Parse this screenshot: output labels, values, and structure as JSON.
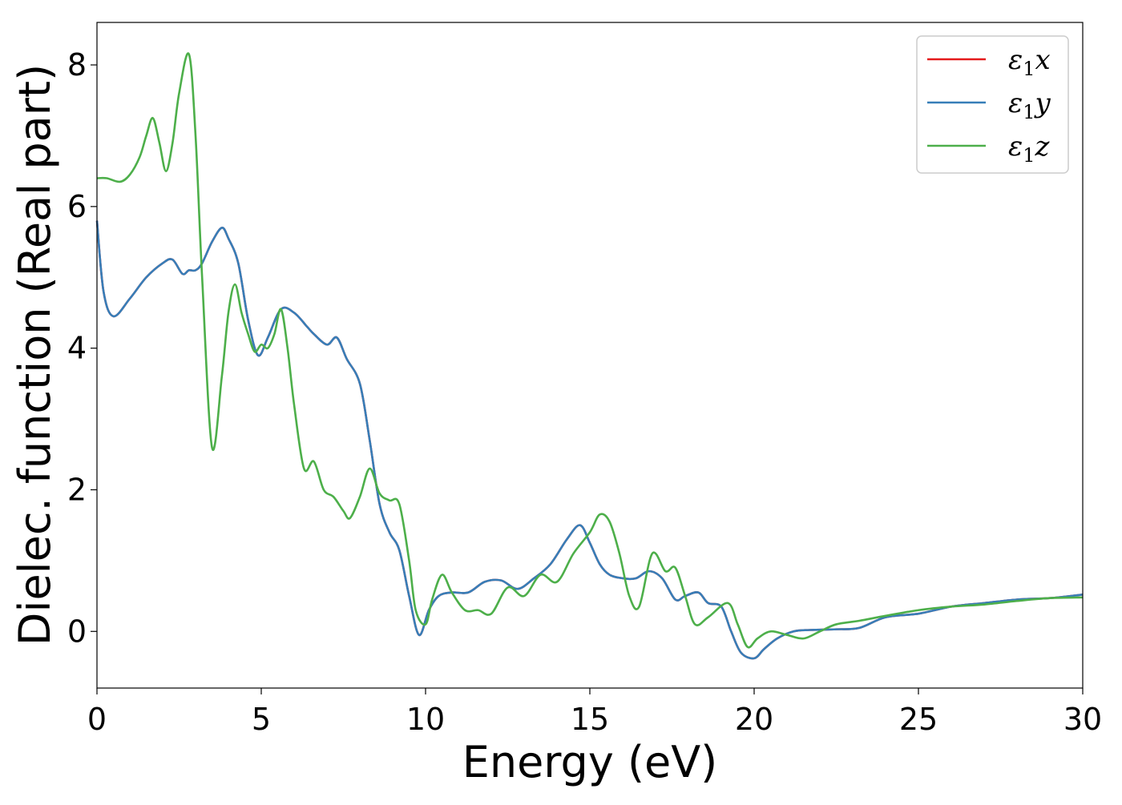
{
  "chart_data": {
    "type": "line",
    "title": "",
    "xlabel": "Energy (eV)",
    "ylabel": "Dielec. function (Real part)",
    "xlim": [
      0,
      30
    ],
    "ylim": [
      -0.8,
      8.6
    ],
    "xticks": [
      0,
      5,
      10,
      15,
      20,
      25,
      30
    ],
    "yticks": [
      0,
      2,
      4,
      6,
      8
    ],
    "grid": false,
    "legend_position": "top-right",
    "series": [
      {
        "name": "ε1x",
        "label_main": "ε",
        "label_sub": "1",
        "label_suffix": "x",
        "color": "#e41a1c",
        "x": [
          0,
          0.2,
          0.5,
          1.0,
          1.5,
          2.0,
          2.3,
          2.6,
          2.8,
          3.0,
          3.2,
          3.5,
          3.8,
          4.0,
          4.3,
          4.6,
          4.9,
          5.2,
          5.6,
          6.0,
          6.4,
          6.6,
          7.0,
          7.3,
          7.6,
          8.0,
          8.3,
          8.6,
          8.9,
          9.2,
          9.5,
          9.8,
          10.1,
          10.4,
          10.8,
          11.3,
          11.8,
          12.3,
          12.8,
          13.3,
          13.8,
          14.3,
          14.7,
          15.0,
          15.3,
          15.6,
          16.0,
          16.4,
          16.8,
          17.2,
          17.6,
          17.9,
          18.3,
          18.6,
          19.0,
          19.3,
          19.6,
          20.0,
          20.3,
          20.7,
          21.2,
          21.7,
          22.5,
          23.2,
          24.0,
          25.0,
          26.0,
          27.0,
          28.0,
          29.0,
          30.0
        ],
        "y": [
          5.8,
          4.8,
          4.45,
          4.7,
          5.0,
          5.2,
          5.25,
          5.05,
          5.1,
          5.1,
          5.2,
          5.5,
          5.7,
          5.55,
          5.2,
          4.4,
          3.9,
          4.15,
          4.55,
          4.5,
          4.3,
          4.2,
          4.05,
          4.15,
          3.85,
          3.5,
          2.7,
          1.8,
          1.4,
          1.15,
          0.5,
          -0.05,
          0.3,
          0.5,
          0.55,
          0.55,
          0.7,
          0.72,
          0.6,
          0.75,
          0.95,
          1.3,
          1.5,
          1.25,
          0.95,
          0.8,
          0.75,
          0.75,
          0.85,
          0.75,
          0.45,
          0.5,
          0.55,
          0.4,
          0.35,
          0.0,
          -0.3,
          -0.38,
          -0.25,
          -0.1,
          0.0,
          0.02,
          0.03,
          0.05,
          0.2,
          0.25,
          0.35,
          0.4,
          0.45,
          0.47,
          0.52
        ]
      },
      {
        "name": "ε1y",
        "label_main": "ε",
        "label_sub": "1",
        "label_suffix": "y",
        "color": "#377eb8",
        "x": [
          0,
          0.2,
          0.5,
          1.0,
          1.5,
          2.0,
          2.3,
          2.6,
          2.8,
          3.0,
          3.2,
          3.5,
          3.8,
          4.0,
          4.3,
          4.6,
          4.9,
          5.2,
          5.6,
          6.0,
          6.4,
          6.6,
          7.0,
          7.3,
          7.6,
          8.0,
          8.3,
          8.6,
          8.9,
          9.2,
          9.5,
          9.8,
          10.1,
          10.4,
          10.8,
          11.3,
          11.8,
          12.3,
          12.8,
          13.3,
          13.8,
          14.3,
          14.7,
          15.0,
          15.3,
          15.6,
          16.0,
          16.4,
          16.8,
          17.2,
          17.6,
          17.9,
          18.3,
          18.6,
          19.0,
          19.3,
          19.6,
          20.0,
          20.3,
          20.7,
          21.2,
          21.7,
          22.5,
          23.2,
          24.0,
          25.0,
          26.0,
          27.0,
          28.0,
          29.0,
          30.0
        ],
        "y": [
          5.8,
          4.8,
          4.45,
          4.7,
          5.0,
          5.2,
          5.25,
          5.05,
          5.1,
          5.1,
          5.2,
          5.5,
          5.7,
          5.55,
          5.2,
          4.4,
          3.9,
          4.15,
          4.55,
          4.5,
          4.3,
          4.2,
          4.05,
          4.15,
          3.85,
          3.5,
          2.7,
          1.8,
          1.4,
          1.15,
          0.5,
          -0.05,
          0.3,
          0.5,
          0.55,
          0.55,
          0.7,
          0.72,
          0.6,
          0.75,
          0.95,
          1.3,
          1.5,
          1.25,
          0.95,
          0.8,
          0.75,
          0.75,
          0.85,
          0.75,
          0.45,
          0.5,
          0.55,
          0.4,
          0.35,
          0.0,
          -0.3,
          -0.38,
          -0.25,
          -0.1,
          0.0,
          0.02,
          0.03,
          0.05,
          0.2,
          0.25,
          0.35,
          0.4,
          0.45,
          0.47,
          0.52
        ]
      },
      {
        "name": "ε1z",
        "label_main": "ε",
        "label_sub": "1",
        "label_suffix": "z",
        "color": "#4daf4a",
        "x": [
          0,
          0.3,
          0.7,
          1.0,
          1.3,
          1.5,
          1.7,
          1.9,
          2.1,
          2.3,
          2.5,
          2.8,
          3.0,
          3.2,
          3.5,
          3.8,
          4.0,
          4.2,
          4.4,
          4.6,
          4.8,
          5.0,
          5.2,
          5.4,
          5.6,
          5.8,
          6.0,
          6.3,
          6.6,
          6.9,
          7.2,
          7.5,
          7.7,
          8.0,
          8.3,
          8.6,
          8.9,
          9.2,
          9.5,
          9.7,
          10.0,
          10.2,
          10.5,
          10.8,
          11.2,
          11.6,
          12.0,
          12.5,
          13.0,
          13.5,
          14.0,
          14.5,
          15.0,
          15.3,
          15.6,
          15.9,
          16.2,
          16.5,
          16.9,
          17.3,
          17.6,
          17.9,
          18.2,
          18.6,
          19.2,
          19.5,
          19.8,
          20.1,
          20.5,
          21.0,
          21.5,
          22.0,
          22.5,
          23.2,
          24.0,
          25.0,
          26.0,
          27.0,
          28.0,
          29.0,
          30.0
        ],
        "y": [
          6.4,
          6.4,
          6.35,
          6.45,
          6.7,
          7.0,
          7.25,
          6.9,
          6.5,
          6.9,
          7.6,
          8.15,
          7.0,
          5.0,
          2.6,
          3.6,
          4.5,
          4.9,
          4.5,
          4.2,
          3.95,
          4.05,
          4.0,
          4.2,
          4.55,
          4.0,
          3.2,
          2.3,
          2.4,
          2.0,
          1.9,
          1.7,
          1.6,
          1.9,
          2.3,
          1.95,
          1.85,
          1.8,
          1.0,
          0.3,
          0.1,
          0.45,
          0.8,
          0.55,
          0.3,
          0.3,
          0.25,
          0.62,
          0.5,
          0.8,
          0.7,
          1.1,
          1.4,
          1.65,
          1.55,
          1.1,
          0.5,
          0.35,
          1.1,
          0.85,
          0.9,
          0.5,
          0.1,
          0.2,
          0.4,
          0.1,
          -0.22,
          -0.1,
          0.0,
          -0.05,
          -0.1,
          0.0,
          0.1,
          0.15,
          0.22,
          0.3,
          0.35,
          0.38,
          0.43,
          0.47,
          0.48
        ]
      }
    ]
  }
}
